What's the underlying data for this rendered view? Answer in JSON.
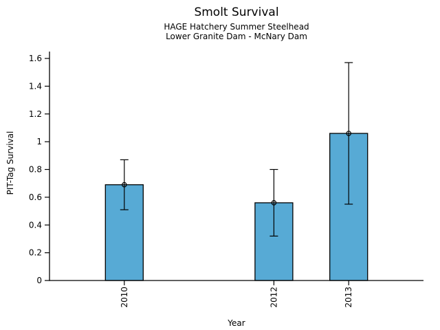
{
  "header": {
    "title": "Smolt Survival",
    "subtitle1": "HAGE Hatchery Summer Steelhead",
    "subtitle2": "Lower Granite Dam - McNary Dam"
  },
  "chart_data": {
    "type": "bar",
    "title": "Smolt Survival",
    "subtitle": [
      "HAGE Hatchery Summer Steelhead",
      "Lower Granite Dam - McNary Dam"
    ],
    "xlabel": "Year",
    "ylabel": "PIT-Tag Survival",
    "categories": [
      "2010",
      "2012",
      "2013"
    ],
    "x": [
      2010,
      2012,
      2013
    ],
    "values": [
      0.69,
      0.56,
      1.06
    ],
    "error_low": [
      0.51,
      0.32,
      0.55
    ],
    "error_high": [
      0.87,
      0.8,
      1.57
    ],
    "xlim": [
      2009,
      2014
    ],
    "ylim": [
      0,
      1.6
    ],
    "yticks": [
      0,
      0.2,
      0.4,
      0.6,
      0.8,
      1,
      1.2,
      1.4,
      1.6
    ],
    "ytick_labels": [
      "0",
      "0.2",
      "0.4",
      "0.6",
      "0.8",
      "1",
      "1.2",
      "1.4",
      "1.6"
    ],
    "bar_color": "#57AAD5",
    "bar_edge_color": "#000000",
    "error_bar_color": "#000000",
    "marker": "open-circle",
    "grid": false,
    "legend": false
  }
}
